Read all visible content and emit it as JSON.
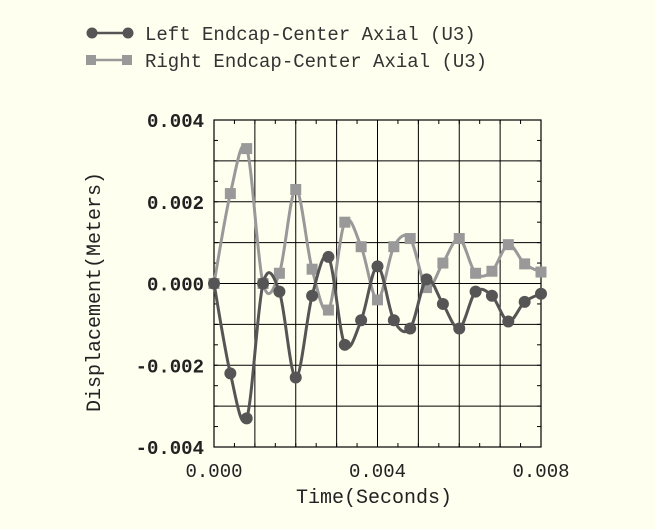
{
  "chart_data": {
    "type": "line",
    "title": "",
    "xlabel": "Time(Seconds)",
    "ylabel": "Displacement(Meters)",
    "xlim": [
      0.0,
      0.008
    ],
    "ylim": [
      -0.004,
      0.004
    ],
    "x_ticks": [
      "0.000",
      "0.004",
      "0.008"
    ],
    "y_ticks": [
      "0.004",
      "0.002",
      "0.000",
      "-0.002",
      "-0.004"
    ],
    "grid": true,
    "legend_position": "top-left",
    "series": [
      {
        "name": "Left Endcap-Center Axial (U3)",
        "color": "#555555",
        "marker": "circle",
        "x": [
          0.0,
          0.0004,
          0.0008,
          0.0012,
          0.0016,
          0.002,
          0.0024,
          0.0028,
          0.0032,
          0.0036,
          0.004,
          0.0044,
          0.0048,
          0.0052,
          0.0056,
          0.006,
          0.0064,
          0.0068,
          0.0072,
          0.0076,
          0.008
        ],
        "y": [
          0.0,
          -0.0022,
          -0.0033,
          0.0,
          -0.0002,
          -0.0023,
          -0.0003,
          0.00065,
          -0.0015,
          -0.0009,
          0.00042,
          -0.0009,
          -0.0011,
          0.0001,
          -0.0005,
          -0.0011,
          -0.0002,
          -0.0003,
          -0.00093,
          -0.00045,
          -0.00025
        ]
      },
      {
        "name": "Right Endcap-Center Axial (U3)",
        "color": "#999999",
        "marker": "square",
        "x": [
          0.0,
          0.0004,
          0.0008,
          0.0012,
          0.0016,
          0.002,
          0.0024,
          0.0028,
          0.0032,
          0.0036,
          0.004,
          0.0044,
          0.0048,
          0.0052,
          0.0056,
          0.006,
          0.0064,
          0.0068,
          0.0072,
          0.0076,
          0.008
        ],
        "y": [
          0.0,
          0.0022,
          0.0033,
          0.0,
          0.00025,
          0.0023,
          0.00035,
          -0.00065,
          0.0015,
          0.0009,
          -0.0004,
          0.0009,
          0.0011,
          -0.0001,
          0.0005,
          0.0011,
          0.00025,
          0.0003,
          0.00095,
          0.00048,
          0.00028
        ]
      }
    ]
  }
}
